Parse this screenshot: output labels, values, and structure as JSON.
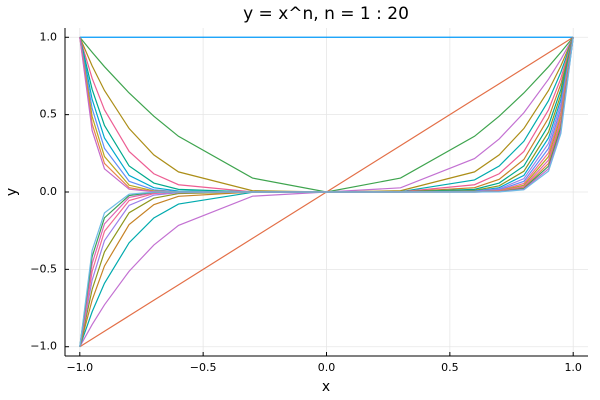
{
  "chart_data": {
    "type": "line",
    "title": "y = x^n,  n = 1 : 20",
    "x_label": "x",
    "y_label": "y",
    "x": [
      -1,
      -0.95,
      -0.9,
      -0.8,
      -0.7,
      -0.6,
      -0.3,
      0,
      0.3,
      0.6,
      0.7,
      0.8,
      0.9,
      0.95,
      1
    ],
    "xlim": [
      -1.06,
      1.06
    ],
    "ylim": [
      -1.06,
      1.06
    ],
    "xticks": [
      {
        "value": -1,
        "label": "−1.0"
      },
      {
        "value": -0.5,
        "label": "−0.5"
      },
      {
        "value": 0,
        "label": "0.0"
      },
      0.5,
      {
        "value": 1,
        "label": "1.0"
      }
    ],
    "yticks": [
      {
        "value": -1,
        "label": "−1.0"
      },
      {
        "value": -0.5,
        "label": "−0.5"
      },
      {
        "value": 0,
        "label": "0.0"
      },
      0.5,
      {
        "value": 1,
        "label": "1.0"
      }
    ],
    "grid": true,
    "series": [
      {
        "color": "#009AFA",
        "values": [
          1,
          1,
          1,
          1,
          1,
          1,
          1,
          1,
          1,
          1,
          1,
          1,
          1,
          1,
          1
        ]
      },
      {
        "color": "#E36F47",
        "values": [
          -1,
          -0.95,
          -0.9,
          -0.8,
          -0.7,
          -0.6,
          -0.3,
          0,
          0.3,
          0.6,
          0.7,
          0.8,
          0.9,
          0.95,
          1
        ]
      },
      {
        "color": "#3EA44E",
        "values": [
          1,
          0.903,
          0.81,
          0.64,
          0.49,
          0.36,
          0.09,
          0,
          0.09,
          0.36,
          0.49,
          0.64,
          0.81,
          0.903,
          1
        ]
      },
      {
        "color": "#C371D2",
        "values": [
          -1,
          -0.857,
          -0.729,
          -0.512,
          -0.343,
          -0.216,
          -0.027,
          0,
          0.027,
          0.216,
          0.343,
          0.512,
          0.729,
          0.857,
          1
        ]
      },
      {
        "color": "#AC8E18",
        "values": [
          1,
          0.815,
          0.656,
          0.41,
          0.24,
          0.13,
          0.008,
          0,
          0.008,
          0.13,
          0.24,
          0.41,
          0.656,
          0.815,
          1
        ]
      },
      {
        "color": "#00AAAE",
        "values": [
          -1,
          -0.774,
          -0.59,
          -0.328,
          -0.168,
          -0.078,
          -0.002,
          0,
          0.002,
          0.078,
          0.168,
          0.328,
          0.59,
          0.774,
          1
        ]
      },
      {
        "color": "#ED5E93",
        "values": [
          1,
          0.735,
          0.531,
          0.262,
          0.118,
          0.047,
          0.001,
          0,
          0.001,
          0.047,
          0.118,
          0.262,
          0.531,
          0.735,
          1
        ]
      },
      {
        "color": "#C68225",
        "values": [
          -1,
          -0.698,
          -0.478,
          -0.21,
          -0.082,
          -0.028,
          0,
          0,
          0,
          0.028,
          0.082,
          0.21,
          0.478,
          0.698,
          1
        ]
      },
      {
        "color": "#00A98D",
        "values": [
          1,
          0.663,
          0.43,
          0.168,
          0.058,
          0.017,
          0,
          0,
          0,
          0.017,
          0.058,
          0.168,
          0.43,
          0.663,
          1
        ]
      },
      {
        "color": "#8E971D",
        "values": [
          -1,
          -0.63,
          -0.387,
          -0.134,
          -0.04,
          -0.01,
          0,
          0,
          0,
          0.01,
          0.04,
          0.134,
          0.387,
          0.63,
          1
        ]
      },
      {
        "color": "#00A9CD",
        "values": [
          1,
          0.599,
          0.349,
          0.107,
          0.028,
          0.006,
          0,
          0,
          0,
          0.006,
          0.028,
          0.107,
          0.349,
          0.599,
          1
        ]
      },
      {
        "color": "#9B7FE9",
        "values": [
          -1,
          -0.569,
          -0.314,
          -0.086,
          -0.02,
          -0.004,
          0,
          0,
          0,
          0.004,
          0.02,
          0.086,
          0.314,
          0.569,
          1
        ]
      },
      {
        "color": "#618DF6",
        "values": [
          1,
          0.54,
          0.282,
          0.069,
          0.014,
          0.002,
          0,
          0,
          0,
          0.002,
          0.014,
          0.069,
          0.282,
          0.54,
          1
        ]
      },
      {
        "color": "#F16C90",
        "values": [
          -1,
          -0.513,
          -0.254,
          -0.055,
          -0.01,
          -0.001,
          0,
          0,
          0,
          0.001,
          0.01,
          0.055,
          0.254,
          0.513,
          1
        ]
      },
      {
        "color": "#B9A71F",
        "values": [
          1,
          0.488,
          0.229,
          0.044,
          0.007,
          0.001,
          0,
          0,
          0,
          0.001,
          0.007,
          0.044,
          0.229,
          0.488,
          1
        ]
      },
      {
        "color": "#DD64B5",
        "values": [
          -1,
          -0.463,
          -0.206,
          -0.035,
          -0.005,
          0,
          0,
          0,
          0,
          0,
          0.005,
          0.035,
          0.206,
          0.463,
          1
        ]
      },
      {
        "color": "#E6844A",
        "values": [
          1,
          0.44,
          0.185,
          0.028,
          0.003,
          0,
          0,
          0,
          0,
          0,
          0.003,
          0.028,
          0.185,
          0.44,
          1
        ]
      },
      {
        "color": "#3AA05A",
        "values": [
          -1,
          -0.418,
          -0.167,
          -0.023,
          -0.002,
          0,
          0,
          0,
          0,
          0,
          0.002,
          0.023,
          0.167,
          0.418,
          1
        ]
      },
      {
        "color": "#C569CB",
        "values": [
          1,
          0.397,
          0.15,
          0.018,
          0.002,
          0,
          0,
          0,
          0,
          0,
          0.002,
          0.018,
          0.15,
          0.397,
          1
        ]
      },
      {
        "color": "#6EBCE6",
        "values": [
          -1,
          -0.377,
          -0.135,
          -0.014,
          -0.001,
          0,
          0,
          0,
          0,
          0,
          0.001,
          0.014,
          0.135,
          0.377,
          1
        ]
      }
    ]
  }
}
